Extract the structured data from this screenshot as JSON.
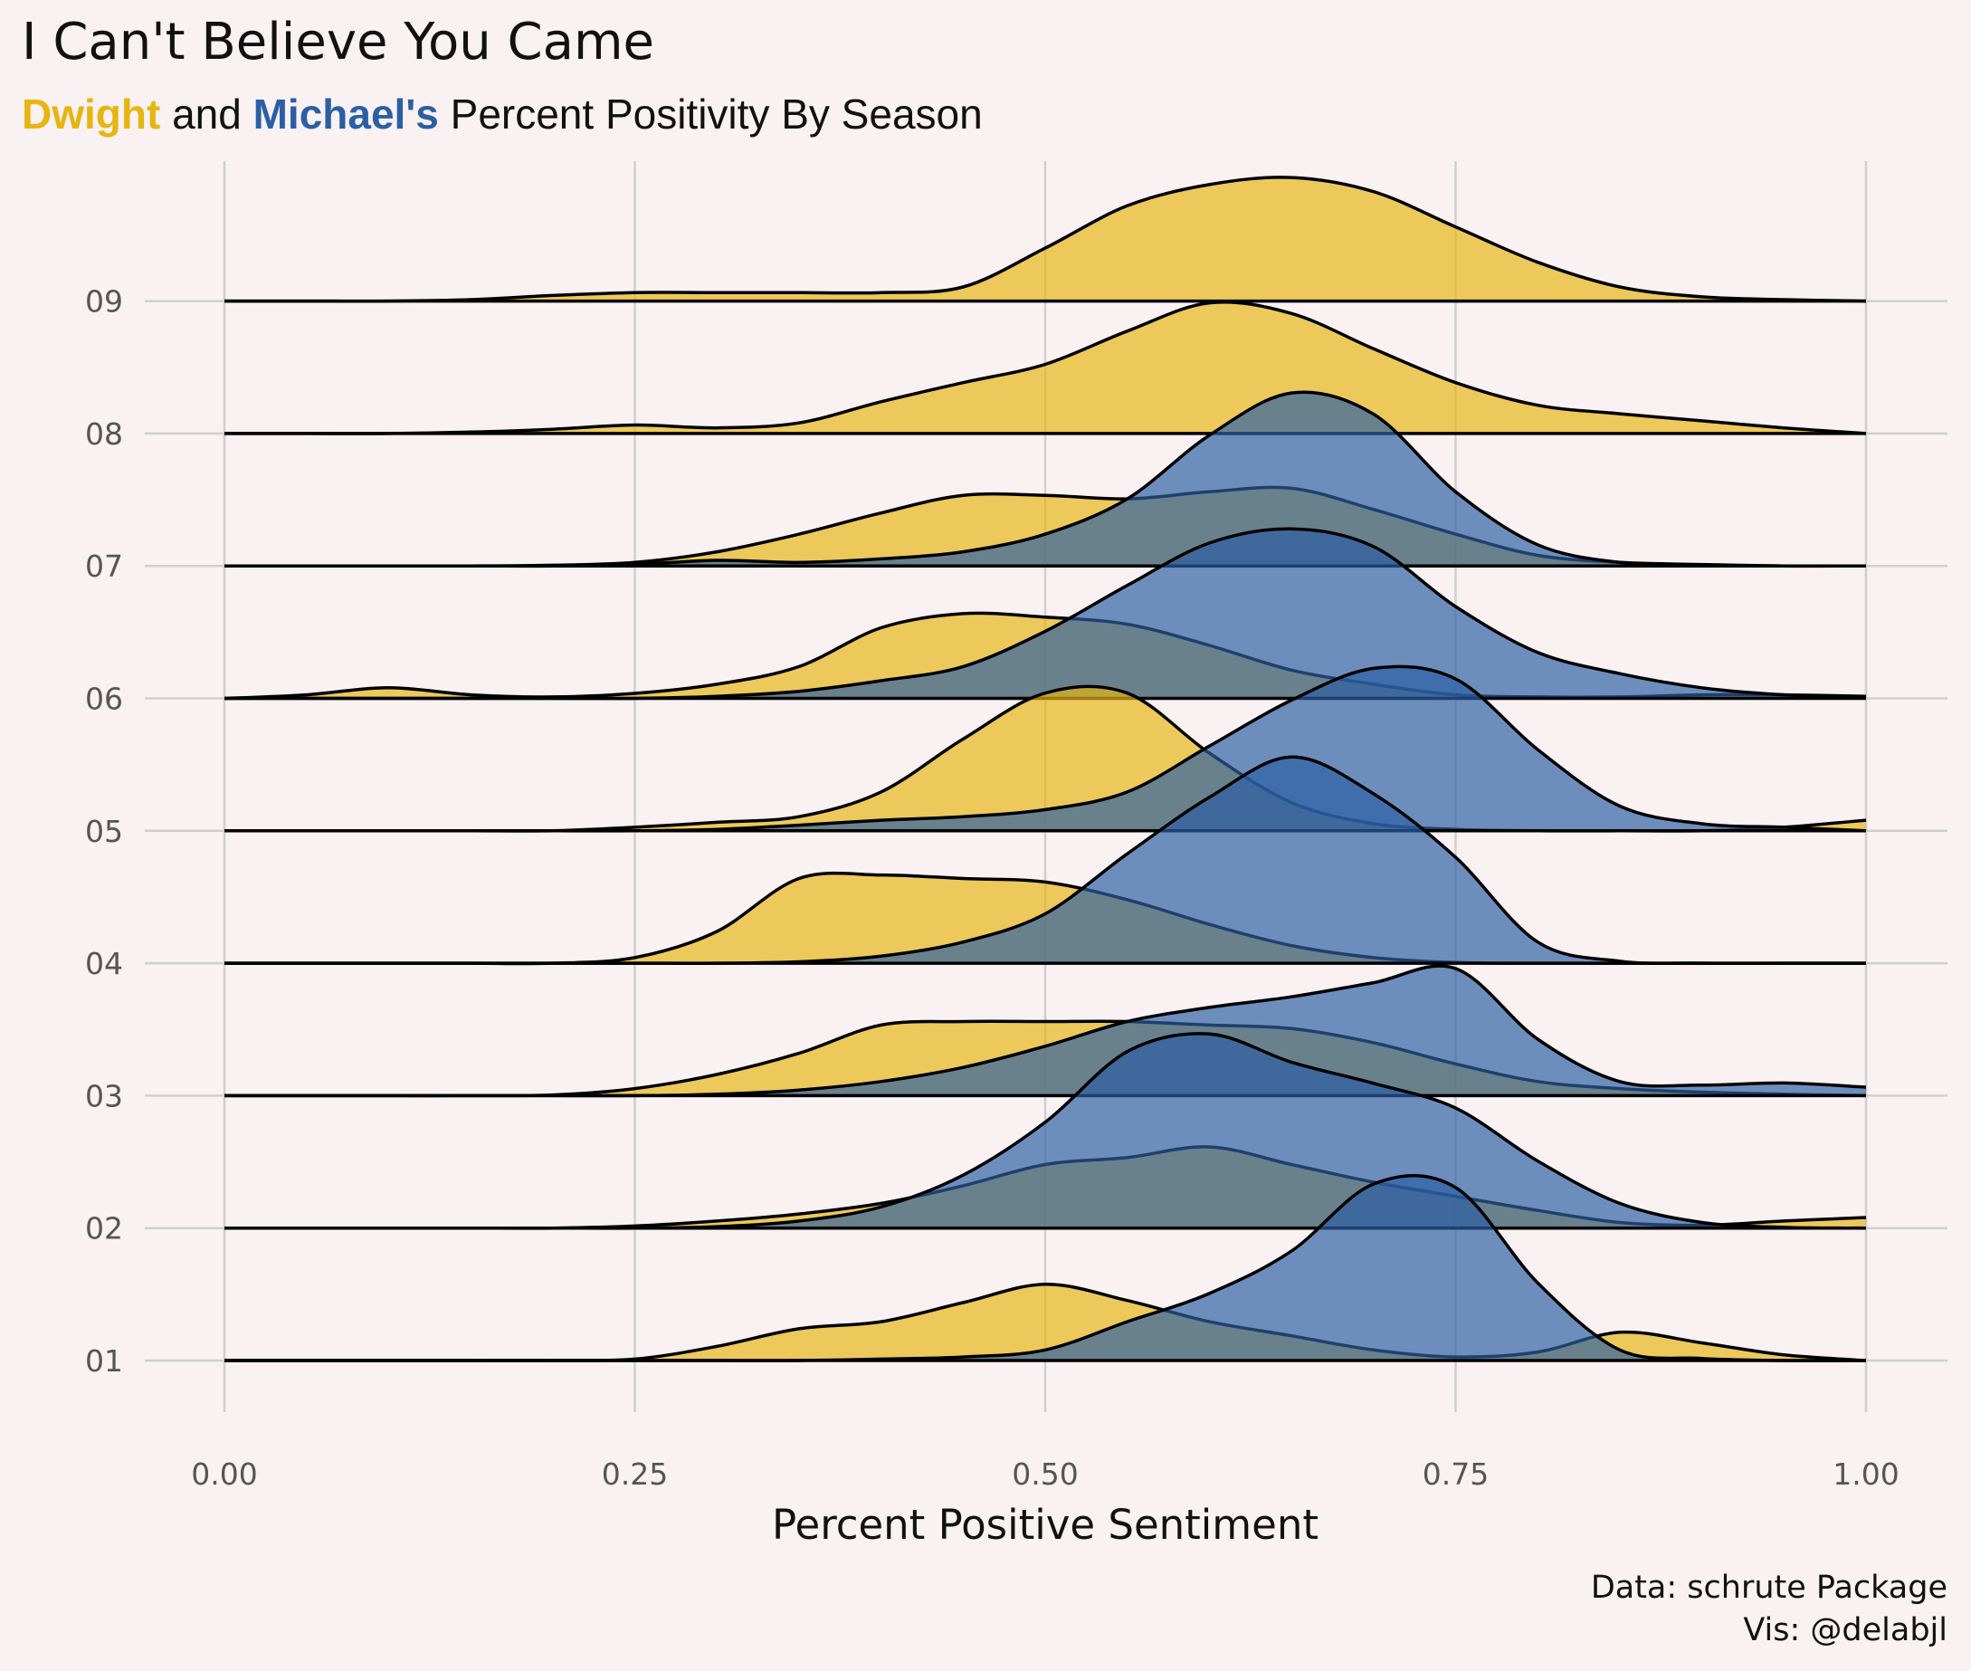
{
  "title": "I Can't Believe You Came",
  "subtitle": {
    "dwight": "Dwight",
    "and": " and ",
    "michael": "Michael's",
    "rest": " Percent Positivity By Season"
  },
  "caption": {
    "line1": "Data: schrute Package",
    "line2": "Vis: @delabjl"
  },
  "colors": {
    "dwight": "#e6b511",
    "michael": "#2b5fa4",
    "background": "#f9f1f2"
  },
  "chart_data": {
    "type": "ridgeline",
    "xlabel": "Percent Positive Sentiment",
    "ylabel": "",
    "xlim": [
      0,
      1
    ],
    "x_ticks": [
      "0.00",
      "0.25",
      "0.50",
      "0.75",
      "1.00"
    ],
    "x_tick_values": [
      0,
      0.25,
      0.5,
      0.75,
      1
    ],
    "categories": [
      "01",
      "02",
      "03",
      "04",
      "05",
      "06",
      "07",
      "08",
      "09"
    ],
    "x": [
      0,
      0.05,
      0.1,
      0.15,
      0.2,
      0.25,
      0.3,
      0.35,
      0.4,
      0.45,
      0.5,
      0.55,
      0.6,
      0.65,
      0.7,
      0.75,
      0.8,
      0.85,
      0.9,
      0.95,
      1.0
    ],
    "series": [
      {
        "name": "Dwight",
        "densities": {
          "01": [
            0,
            0,
            0,
            0,
            0,
            0.02,
            0.2,
            0.45,
            0.55,
            0.82,
            1.08,
            0.85,
            0.55,
            0.35,
            0.15,
            0.05,
            0.12,
            0.4,
            0.25,
            0.08,
            0
          ],
          "02": [
            0,
            0,
            0,
            0,
            0,
            0.03,
            0.1,
            0.2,
            0.35,
            0.6,
            0.9,
            1.0,
            1.15,
            0.9,
            0.65,
            0.45,
            0.25,
            0.08,
            0.04,
            0.1,
            0.15
          ],
          "03": [
            0,
            0,
            0,
            0,
            0.01,
            0.1,
            0.3,
            0.6,
            1.0,
            1.05,
            1.05,
            1.05,
            1.0,
            0.95,
            0.75,
            0.45,
            0.2,
            0.1,
            0.05,
            0.02,
            0
          ],
          "04": [
            0,
            0,
            0,
            0,
            0,
            0.08,
            0.45,
            1.2,
            1.25,
            1.2,
            1.15,
            0.9,
            0.55,
            0.25,
            0.08,
            0.01,
            0,
            0,
            0,
            0,
            0
          ],
          "05": [
            0,
            0,
            0,
            0,
            0,
            0.05,
            0.12,
            0.2,
            0.55,
            1.3,
            1.95,
            1.95,
            1.1,
            0.4,
            0.1,
            0.02,
            0,
            0,
            0,
            0.05,
            0.15
          ],
          "06": [
            0,
            0.05,
            0.15,
            0.05,
            0.02,
            0.07,
            0.2,
            0.45,
            1.0,
            1.2,
            1.15,
            1.05,
            0.75,
            0.4,
            0.2,
            0.05,
            0.02,
            0.02,
            0.05,
            0.05,
            0.03
          ],
          "07": [
            0,
            0,
            0,
            0,
            0.01,
            0.05,
            0.2,
            0.45,
            0.75,
            1.0,
            1.0,
            0.95,
            1.05,
            1.1,
            0.8,
            0.45,
            0.15,
            0.05,
            0.02,
            0,
            0
          ],
          "08": [
            0,
            0,
            0,
            0.02,
            0.06,
            0.12,
            0.08,
            0.15,
            0.45,
            0.72,
            0.98,
            1.45,
            1.85,
            1.7,
            1.2,
            0.72,
            0.4,
            0.28,
            0.18,
            0.08,
            0
          ],
          "09": [
            0,
            0,
            0,
            0.02,
            0.08,
            0.12,
            0.12,
            0.12,
            0.12,
            0.2,
            0.75,
            1.35,
            1.65,
            1.75,
            1.55,
            1.05,
            0.55,
            0.2,
            0.06,
            0.02,
            0
          ]
        }
      },
      {
        "name": "Michael",
        "densities": {
          "01": [
            0,
            0,
            0,
            0,
            0,
            0,
            0,
            0,
            0.02,
            0.05,
            0.15,
            0.55,
            0.95,
            1.55,
            2.5,
            2.45,
            1.1,
            0.15,
            0.03,
            0,
            0
          ],
          "02": [
            0,
            0,
            0,
            0,
            0,
            0,
            0.02,
            0.1,
            0.3,
            0.75,
            1.5,
            2.5,
            2.75,
            2.35,
            2.05,
            1.7,
            0.95,
            0.35,
            0.08,
            0.01,
            0
          ],
          "03": [
            0,
            0,
            0,
            0,
            0,
            0,
            0.02,
            0.08,
            0.2,
            0.4,
            0.7,
            1.05,
            1.25,
            1.4,
            1.6,
            1.8,
            0.8,
            0.2,
            0.15,
            0.18,
            0.12
          ],
          "04": [
            0,
            0,
            0,
            0,
            0,
            0,
            0,
            0.02,
            0.1,
            0.3,
            0.7,
            1.55,
            2.35,
            2.92,
            2.4,
            1.5,
            0.3,
            0.03,
            0,
            0,
            0
          ],
          "05": [
            0,
            0,
            0,
            0,
            0,
            0,
            0.02,
            0.08,
            0.15,
            0.2,
            0.3,
            0.55,
            1.2,
            1.85,
            2.3,
            2.15,
            1.15,
            0.35,
            0.1,
            0.05,
            0
          ],
          "06": [
            0,
            0,
            0,
            0,
            0,
            0,
            0.03,
            0.1,
            0.25,
            0.45,
            0.95,
            1.6,
            2.2,
            2.4,
            2.15,
            1.3,
            0.65,
            0.35,
            0.15,
            0.05,
            0.02
          ],
          "07": [
            0,
            0,
            0,
            0,
            0,
            0.02,
            0.08,
            0.05,
            0.1,
            0.2,
            0.45,
            0.95,
            1.85,
            2.45,
            2.15,
            1.05,
            0.3,
            0.05,
            0.01,
            0,
            0
          ],
          "08": [],
          "09": []
        }
      }
    ],
    "grid": true
  }
}
